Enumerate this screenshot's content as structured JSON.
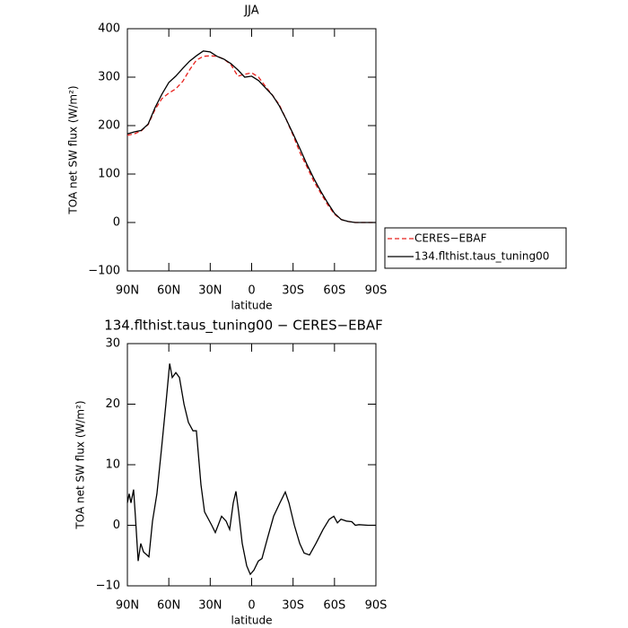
{
  "chart_data": [
    {
      "type": "line",
      "title": "JJA",
      "xlabel": "latitude",
      "ylabel": "TOA net SW flux (W/m²)",
      "x": [
        90,
        85,
        80,
        75,
        70,
        65,
        60,
        55,
        50,
        45,
        40,
        35,
        30,
        25,
        20,
        15,
        10,
        5,
        0,
        -5,
        -10,
        -15,
        -20,
        -25,
        -30,
        -35,
        -40,
        -45,
        -50,
        -55,
        -60,
        -65,
        -70,
        -75,
        -80,
        -85,
        -90
      ],
      "series": [
        {
          "name": "CERES−EBAF",
          "color": "#e8201c",
          "dashed": true,
          "values": [
            180,
            183,
            189,
            202,
            233,
            256,
            267,
            276,
            291,
            315,
            335,
            343,
            344,
            343,
            337,
            326,
            302,
            306,
            309,
            300,
            281,
            263,
            243,
            213,
            180,
            144,
            115,
            85,
            61,
            37,
            17,
            6,
            2,
            0,
            0,
            0,
            0
          ]
        },
        {
          "name": "134.flthist.taus_tuning00",
          "color": "#000000",
          "dashed": false,
          "values": [
            183,
            187,
            190,
            203,
            237,
            265,
            289,
            302,
            318,
            333,
            344,
            354,
            352,
            343,
            337,
            328,
            315,
            300,
            302,
            293,
            278,
            263,
            241,
            213,
            183,
            152,
            120,
            91,
            65,
            41,
            19,
            6,
            2,
            0,
            0,
            0,
            0
          ]
        }
      ],
      "xlim": [
        90,
        -90
      ],
      "xticks": [
        {
          "value": 90,
          "label": "90N"
        },
        {
          "value": 60,
          "label": "60N"
        },
        {
          "value": 30,
          "label": "30N"
        },
        0,
        {
          "value": -30,
          "label": "30S"
        },
        {
          "value": -60,
          "label": "60S"
        },
        {
          "value": -90,
          "label": "90S"
        }
      ],
      "ylim": [
        -100,
        400
      ],
      "yticks": [
        {
          "value": -100,
          "label": "−100"
        },
        0,
        100,
        200,
        300,
        400
      ],
      "legend": "right"
    },
    {
      "type": "line",
      "title": "134.flthist.taus_tuning00 − CERES−EBAF",
      "xlabel": "latitude",
      "ylabel": "TOA net SW flux (W/m²)",
      "x": [
        90,
        88.7,
        87.4,
        85.5,
        84.2,
        82.2,
        80.3,
        78.3,
        74.4,
        71.8,
        68.6,
        65.3,
        62.1,
        59.4,
        57.5,
        54.9,
        52.3,
        49,
        45.8,
        42.5,
        40,
        36.7,
        34.1,
        28.9,
        26.3,
        21.8,
        18.5,
        15.9,
        13.3,
        11.4,
        9.4,
        6.8,
        3.6,
        1,
        -1.6,
        -4.9,
        -7.5,
        -11.4,
        -15.9,
        -20.5,
        -24.4,
        -27,
        -30.9,
        -34.8,
        -38,
        -41.9,
        -46.5,
        -51.7,
        -56.2,
        -59.5,
        -62.1,
        -64.7,
        -68.6,
        -72.5,
        -75.1,
        -77.7,
        -84.2,
        -90
      ],
      "series": [
        {
          "color": "#000000",
          "dashed": false,
          "values": [
            3.7,
            5.2,
            3.7,
            5.9,
            1.5,
            -5.9,
            -3,
            -4.4,
            -5.2,
            0.7,
            5.2,
            12.6,
            20,
            26.7,
            24.4,
            25.2,
            24.4,
            20,
            17,
            15.6,
            15.6,
            6.7,
            2.2,
            0,
            -1.2,
            1.5,
            0.7,
            -0.7,
            3.7,
            5.6,
            2.2,
            -3,
            -6.7,
            -8.1,
            -7.4,
            -5.9,
            -5.5,
            -2.2,
            1.5,
            3.7,
            5.5,
            3.7,
            0,
            -3,
            -4.6,
            -4.9,
            -3,
            -0.7,
            1,
            1.5,
            0.4,
            1,
            0.7,
            0.6,
            0,
            0.1,
            0,
            0
          ]
        }
      ],
      "xlim": [
        90,
        -90
      ],
      "xticks": [
        {
          "value": 90,
          "label": "90N"
        },
        {
          "value": 60,
          "label": "60N"
        },
        {
          "value": 30,
          "label": "30N"
        },
        0,
        {
          "value": -30,
          "label": "30S"
        },
        {
          "value": -60,
          "label": "60S"
        },
        {
          "value": -90,
          "label": "90S"
        }
      ],
      "ylim": [
        -10,
        30
      ],
      "yticks": [
        {
          "value": -10,
          "label": "−10"
        },
        0,
        10,
        20,
        30
      ]
    }
  ]
}
